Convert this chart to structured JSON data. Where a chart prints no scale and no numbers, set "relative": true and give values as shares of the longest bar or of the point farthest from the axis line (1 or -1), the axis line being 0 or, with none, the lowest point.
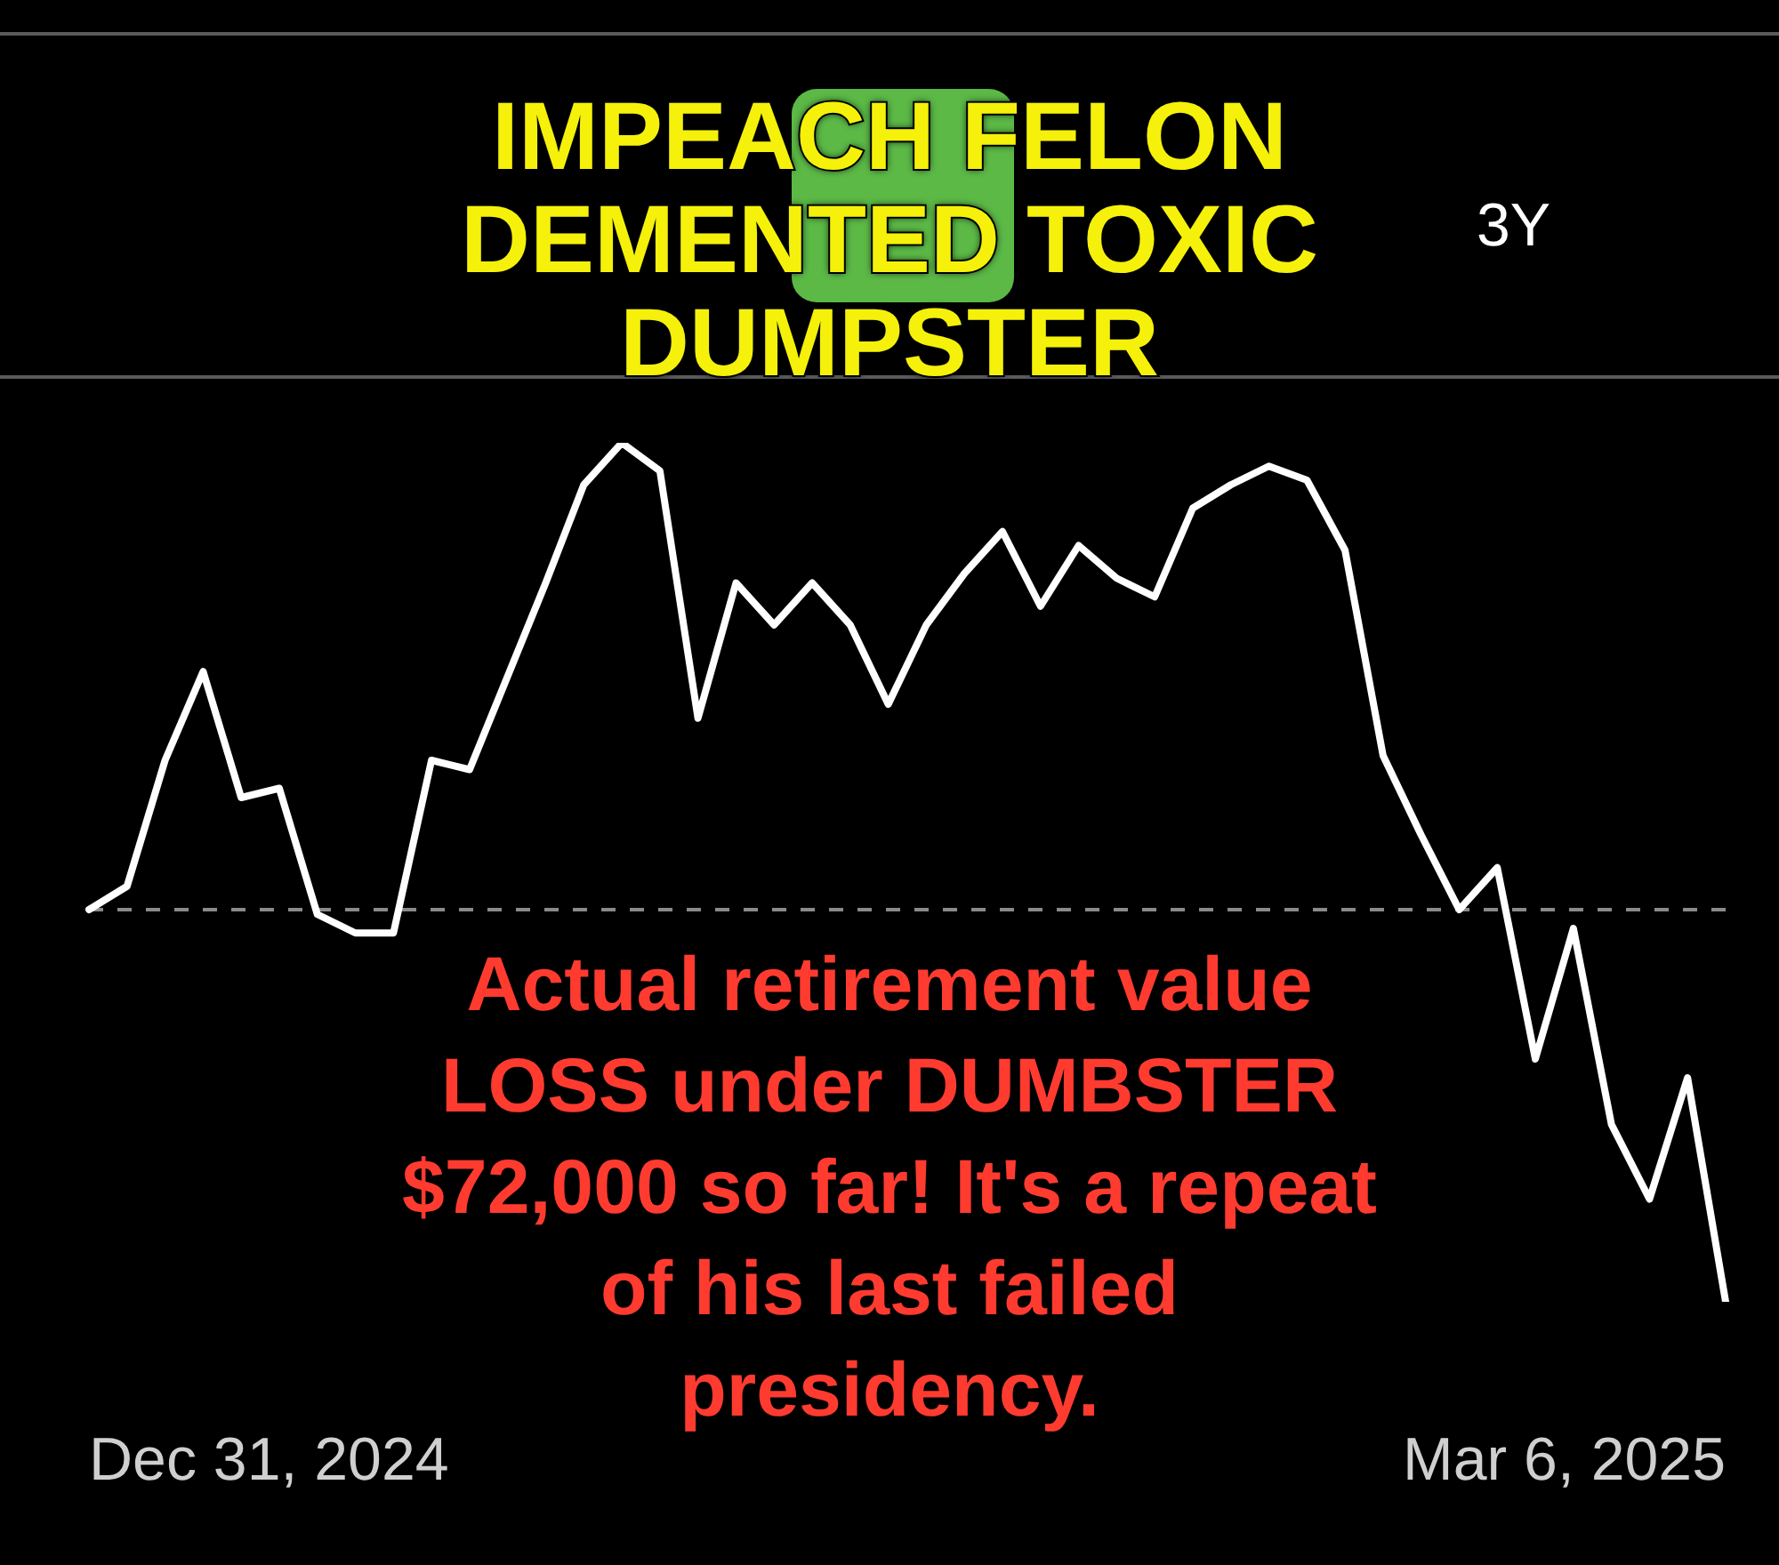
{
  "chart_data": {
    "type": "line",
    "title": "IMPEACH FELON DEMENTED TOXIC DUMPSTER",
    "relative": true,
    "color": "#ffffff",
    "categories": [
      null,
      null,
      null,
      null,
      null,
      null,
      null,
      null,
      null,
      null,
      null,
      null,
      null,
      null,
      null,
      null,
      null,
      null,
      null,
      null,
      null,
      null,
      null,
      null,
      null,
      null,
      null,
      null,
      null,
      null,
      null,
      null,
      null,
      null,
      null,
      null,
      null,
      null,
      null,
      null,
      null,
      null,
      null,
      null
    ],
    "values": [
      0,
      0.05,
      0.32,
      0.51,
      0.24,
      0.26,
      -0.01,
      -0.05,
      -0.05,
      0.32,
      0.3,
      0.5,
      0.7,
      0.91,
      1,
      0.94,
      0.41,
      0.7,
      0.61,
      0.7,
      0.61,
      0.44,
      0.61,
      0.72,
      0.81,
      0.65,
      0.78,
      0.71,
      0.67,
      0.86,
      0.91,
      0.95,
      0.92,
      0.77,
      0.33,
      0.16,
      0,
      0.09,
      -0.32,
      -0.04,
      -0.46,
      -0.62,
      -0.36,
      -0.84
    ],
    "ref_lines": [
      {
        "axis": "y",
        "value": 0,
        "color": "#8a8a8a",
        "line_style": "dashed"
      }
    ],
    "annotations": [
      "3Y",
      "Actual retirement value LOSS under DUMBSTER $72,000 so far! It's a repeat of his last failed presidency.",
      "Dec 31, 2024",
      "Mar 6, 2025"
    ]
  }
}
